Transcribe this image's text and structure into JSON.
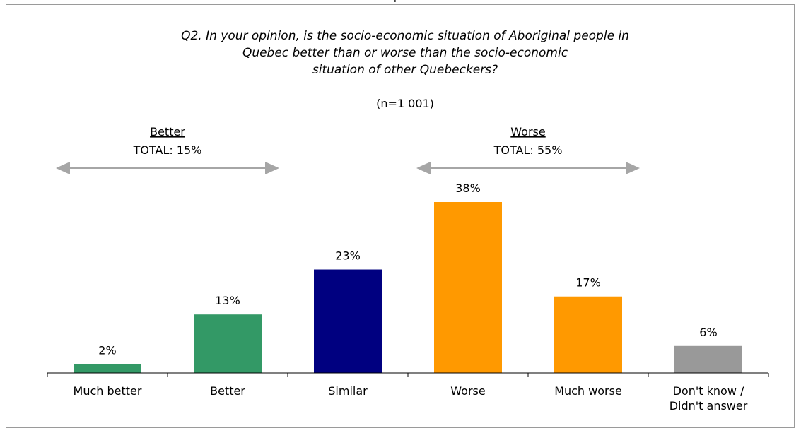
{
  "page_header": "p",
  "chart_data": {
    "type": "bar",
    "title_lines": [
      "Q2. In your opinion, is the socio-economic situation of Aboriginal people in",
      "Quebec better than or worse than the socio-economic",
      "situation of other Quebeckers?"
    ],
    "subtitle": "(n=1 001)",
    "categories": [
      [
        "Much better"
      ],
      [
        "Better"
      ],
      [
        "Similar"
      ],
      [
        "Worse"
      ],
      [
        "Much worse"
      ],
      [
        "Don't know /",
        "Didn't answer"
      ]
    ],
    "values": [
      2,
      13,
      23,
      38,
      17,
      6
    ],
    "value_labels": [
      "2%",
      "13%",
      "23%",
      "38%",
      "17%",
      "6%"
    ],
    "bar_colors": [
      "#339966",
      "#339966",
      "#000080",
      "#FF9900",
      "#FF9900",
      "#999999"
    ],
    "ylim": [
      0,
      38
    ],
    "grid": false,
    "groups": [
      {
        "name": "Better",
        "total": "TOTAL: 15%",
        "first": 0,
        "last": 1
      },
      {
        "name": "Worse",
        "total": "TOTAL: 55%",
        "first": 3,
        "last": 4
      }
    ],
    "arrow_color": "#A6A6A6"
  }
}
